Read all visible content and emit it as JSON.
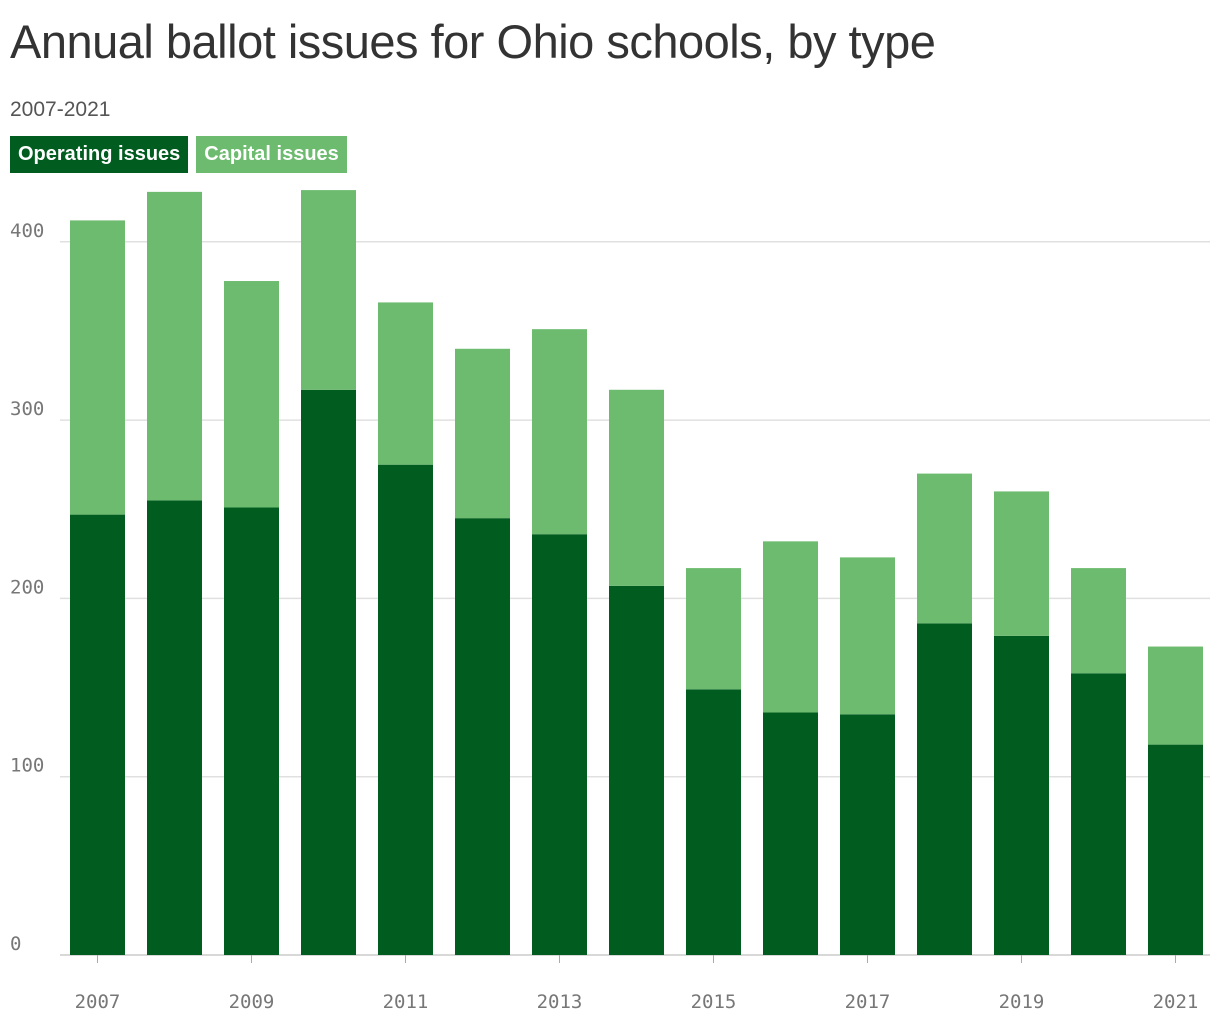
{
  "title": "Annual ballot issues for Ohio schools, by type",
  "subtitle": "2007-2021",
  "colors": {
    "operating": "#005c1f",
    "capital": "#6dbb6f",
    "grid": "#e0e0e0"
  },
  "legend": [
    "Operating issues",
    "Capital issues"
  ],
  "chart_data": {
    "type": "bar",
    "stacked": true,
    "categories": [
      "2007",
      "2008",
      "2009",
      "2010",
      "2011",
      "2012",
      "2013",
      "2014",
      "2015",
      "2016",
      "2017",
      "2018",
      "2019",
      "2020",
      "2021"
    ],
    "x_tick_labels": [
      "2007",
      "2009",
      "2011",
      "2013",
      "2015",
      "2017",
      "2019",
      "2021"
    ],
    "series": [
      {
        "name": "Operating issues",
        "values": [
          247,
          255,
          251,
          317,
          275,
          245,
          236,
          207,
          149,
          136,
          135,
          186,
          179,
          158,
          118
        ]
      },
      {
        "name": "Capital issues",
        "values": [
          165,
          173,
          127,
          112,
          91,
          95,
          115,
          110,
          68,
          96,
          88,
          84,
          81,
          59,
          55
        ]
      }
    ],
    "y_ticks": [
      0,
      100,
      200,
      300,
      400
    ],
    "ylim": [
      0,
      440
    ],
    "grid": true,
    "legend_placement": "top-left"
  }
}
